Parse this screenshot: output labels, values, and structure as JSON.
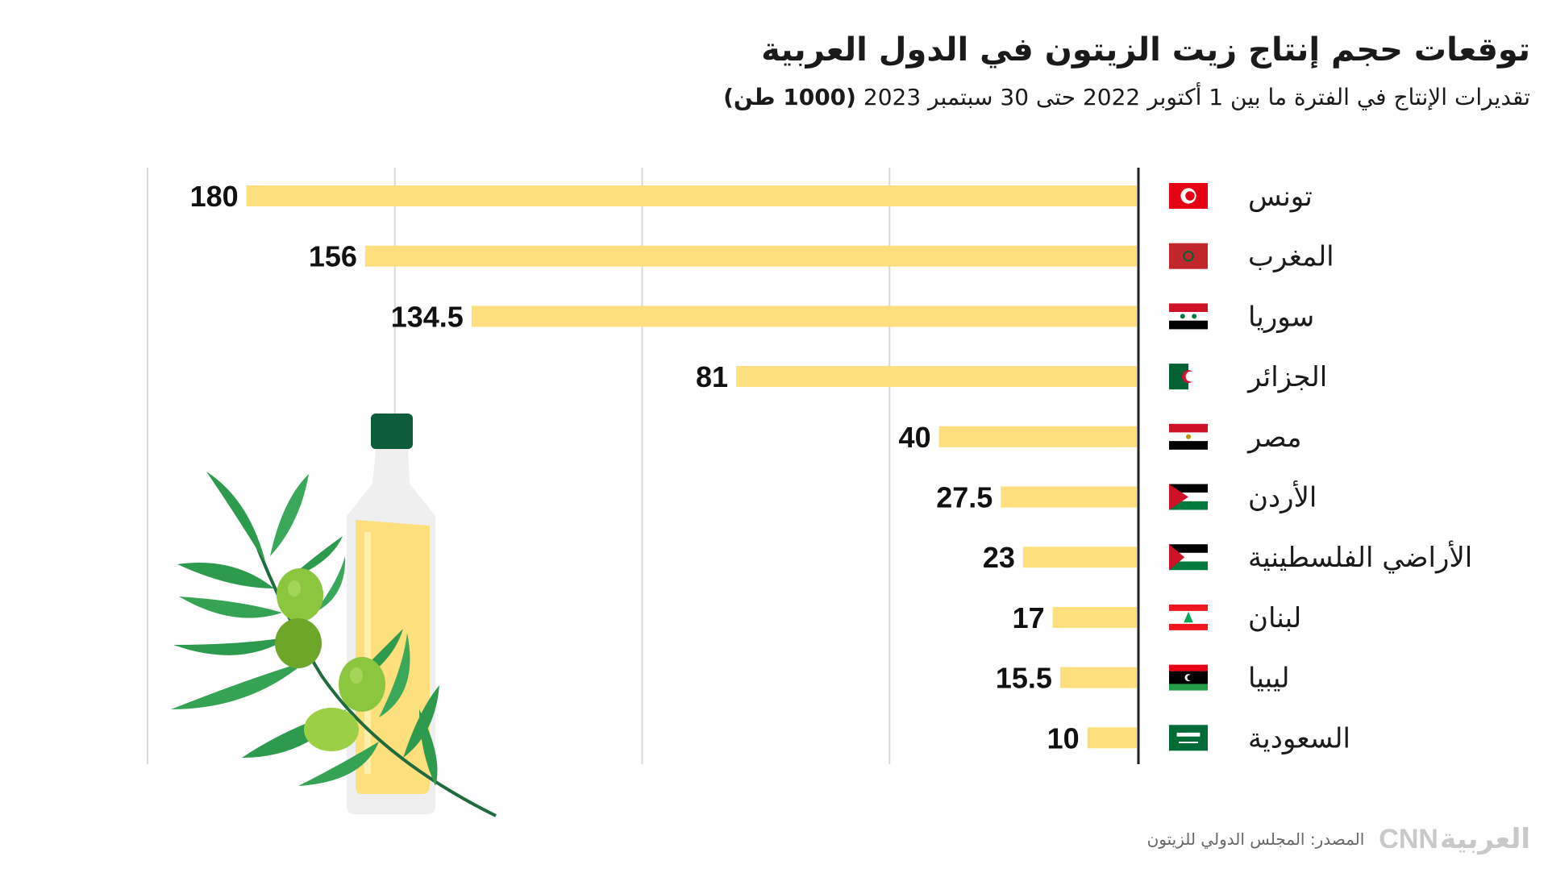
{
  "header": {
    "title": "توقعات حجم إنتاج زيت الزيتون في الدول العربية",
    "subtitle": "تقديرات الإنتاج في الفترة ما بين 1 أكتوبر 2022 حتى 30 سبتمبر 2023",
    "unit": "(1000 طن)"
  },
  "colors": {
    "bar": "#fddf7e",
    "grid": "#d9d9d9",
    "axis": "#222222"
  },
  "chart_data": {
    "type": "bar",
    "orientation": "horizontal",
    "title": "توقعات حجم إنتاج زيت الزيتون في الدول العربية",
    "subtitle": "تقديرات الإنتاج في الفترة ما بين 1 أكتوبر 2022 حتى 30 سبتمبر 2023 (1000 طن)",
    "categories": [
      "تونس",
      "المغرب",
      "سوريا",
      "الجزائر",
      "مصر",
      "الأردن",
      "الأراضي الفلسطينية",
      "لبنان",
      "ليبيا",
      "السعودية"
    ],
    "values": [
      180,
      156,
      134.5,
      81,
      40,
      27.5,
      23,
      17,
      15.5,
      10
    ],
    "labels": [
      "180",
      "156",
      "134.5",
      "81",
      "40",
      "27.5",
      "23",
      "17",
      "15.5",
      "10"
    ],
    "flags": [
      "tunisia-flag-icon",
      "morocco-flag-icon",
      "syria-flag-icon",
      "algeria-flag-icon",
      "egypt-flag-icon",
      "jordan-flag-icon",
      "palestine-flag-icon",
      "lebanon-flag-icon",
      "libya-flag-icon",
      "saudi-flag-icon"
    ],
    "xlim": [
      0,
      200
    ],
    "gridlines": [
      50,
      100,
      150,
      200
    ],
    "direction": "right-to-left"
  },
  "footer": {
    "source": "المصدر: المجلس الدولي للزيتون",
    "logo_ar": "العربية",
    "logo_en": "CNN"
  },
  "illustration": "olive-oil-bottle-with-olive-branch"
}
